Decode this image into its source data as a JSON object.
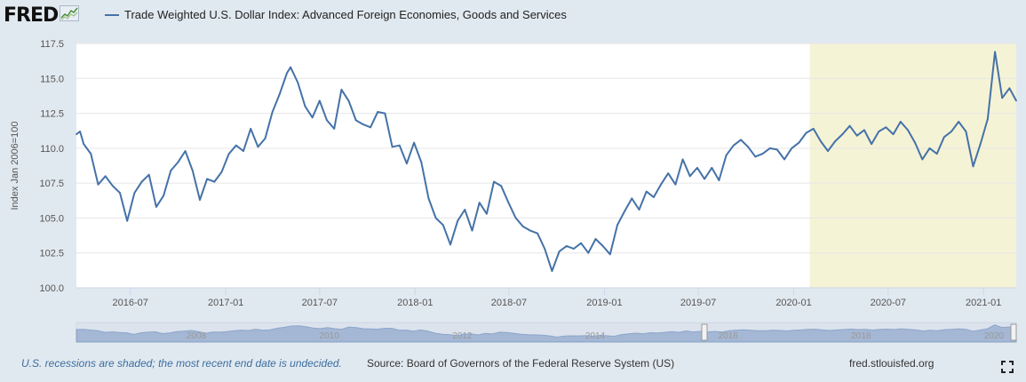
{
  "logo": {
    "text": "FRED"
  },
  "legend": {
    "label": "Trade Weighted U.S. Dollar Index: Advanced Foreign Economies, Goods and Services",
    "color": "#4572a7"
  },
  "footer": {
    "recession_note": "U.S. recessions are shaded; the most recent end date is undecided.",
    "source": "Source: Board of Governors of the Federal Reserve System (US)",
    "url": "fred.stlouisfed.org"
  },
  "navigator": {
    "year_labels": [
      "2008",
      "2010",
      "2012",
      "2014",
      "2016",
      "2018",
      "2020"
    ]
  },
  "colors": {
    "line": "#4572a7",
    "recession": "#f5f3d6",
    "background": "#e1e9f0",
    "plot_bg": "#ffffff",
    "grid": "#e6e6e6"
  },
  "icons": {
    "fullscreen": "fullscreen-icon",
    "logo_graph": "chart-graph-icon"
  },
  "chart_data": {
    "type": "line",
    "title": "",
    "xlabel": "",
    "ylabel": "Index Jan 2006=100",
    "ylim": [
      100.0,
      117.5
    ],
    "xlim": [
      "2016-03-19",
      "2021-03-05"
    ],
    "yticks": [
      "100.0",
      "102.5",
      "105.0",
      "107.5",
      "110.0",
      "112.5",
      "115.0",
      "117.5"
    ],
    "xticks": [
      {
        "date": "2016-07-01",
        "label": "2016-07"
      },
      {
        "date": "2017-01-01",
        "label": "2017-01"
      },
      {
        "date": "2017-07-01",
        "label": "2017-07"
      },
      {
        "date": "2018-01-01",
        "label": "2018-01"
      },
      {
        "date": "2018-07-01",
        "label": "2018-07"
      },
      {
        "date": "2019-01-01",
        "label": "2019-01"
      },
      {
        "date": "2019-07-01",
        "label": "2019-07"
      },
      {
        "date": "2020-01-01",
        "label": "2020-01"
      },
      {
        "date": "2020-07-01",
        "label": "2020-07"
      },
      {
        "date": "2021-01-01",
        "label": "2021-01"
      }
    ],
    "recession": {
      "start": "2020-02-01",
      "end": "2021-03-05"
    },
    "grid": true,
    "series": [
      {
        "name": "Trade Weighted U.S. Dollar Index: Advanced Foreign Economies, Goods and Services",
        "points": [
          [
            "2016-03-19",
            111.0
          ],
          [
            "2016-03-26",
            111.2
          ],
          [
            "2016-04-02",
            110.3
          ],
          [
            "2016-04-16",
            109.6
          ],
          [
            "2016-04-30",
            107.4
          ],
          [
            "2016-05-14",
            108.0
          ],
          [
            "2016-05-28",
            107.3
          ],
          [
            "2016-06-11",
            106.8
          ],
          [
            "2016-06-25",
            104.8
          ],
          [
            "2016-07-09",
            106.8
          ],
          [
            "2016-07-23",
            107.6
          ],
          [
            "2016-08-06",
            108.1
          ],
          [
            "2016-08-20",
            105.8
          ],
          [
            "2016-09-03",
            106.6
          ],
          [
            "2016-09-17",
            108.4
          ],
          [
            "2016-10-01",
            109.0
          ],
          [
            "2016-10-15",
            109.8
          ],
          [
            "2016-10-29",
            108.4
          ],
          [
            "2016-11-12",
            106.3
          ],
          [
            "2016-11-26",
            107.8
          ],
          [
            "2016-12-10",
            107.6
          ],
          [
            "2016-12-24",
            108.3
          ],
          [
            "2017-01-07",
            109.6
          ],
          [
            "2017-01-21",
            110.2
          ],
          [
            "2017-02-04",
            109.8
          ],
          [
            "2017-02-18",
            111.4
          ],
          [
            "2017-03-04",
            110.1
          ],
          [
            "2017-03-18",
            110.7
          ],
          [
            "2017-04-01",
            112.6
          ],
          [
            "2017-04-15",
            113.9
          ],
          [
            "2017-04-29",
            115.4
          ],
          [
            "2017-05-06",
            115.8
          ],
          [
            "2017-05-20",
            114.7
          ],
          [
            "2017-06-03",
            113.0
          ],
          [
            "2017-06-17",
            112.2
          ],
          [
            "2017-07-01",
            113.4
          ],
          [
            "2017-07-15",
            112.0
          ],
          [
            "2017-07-29",
            111.4
          ],
          [
            "2017-08-12",
            114.2
          ],
          [
            "2017-08-26",
            113.4
          ],
          [
            "2017-09-09",
            112.0
          ],
          [
            "2017-09-23",
            111.7
          ],
          [
            "2017-10-07",
            111.5
          ],
          [
            "2017-10-21",
            112.6
          ],
          [
            "2017-11-04",
            112.5
          ],
          [
            "2017-11-18",
            110.1
          ],
          [
            "2017-12-02",
            110.2
          ],
          [
            "2017-12-16",
            108.9
          ],
          [
            "2017-12-30",
            110.4
          ],
          [
            "2018-01-13",
            109.0
          ],
          [
            "2018-01-27",
            106.4
          ],
          [
            "2018-02-10",
            105.0
          ],
          [
            "2018-02-24",
            104.5
          ],
          [
            "2018-03-10",
            103.1
          ],
          [
            "2018-03-24",
            104.8
          ],
          [
            "2018-04-07",
            105.6
          ],
          [
            "2018-04-21",
            104.1
          ],
          [
            "2018-05-05",
            106.1
          ],
          [
            "2018-05-19",
            105.3
          ],
          [
            "2018-06-02",
            107.6
          ],
          [
            "2018-06-16",
            107.3
          ],
          [
            "2018-06-30",
            106.1
          ],
          [
            "2018-07-14",
            105.0
          ],
          [
            "2018-07-28",
            104.4
          ],
          [
            "2018-08-11",
            104.1
          ],
          [
            "2018-08-25",
            103.9
          ],
          [
            "2018-09-08",
            102.8
          ],
          [
            "2018-09-22",
            101.2
          ],
          [
            "2018-10-06",
            102.6
          ],
          [
            "2018-10-20",
            103.0
          ],
          [
            "2018-11-03",
            102.8
          ],
          [
            "2018-11-17",
            103.2
          ],
          [
            "2018-12-01",
            102.5
          ],
          [
            "2018-12-15",
            103.5
          ],
          [
            "2018-12-29",
            103.0
          ],
          [
            "2019-01-12",
            102.4
          ],
          [
            "2019-01-26",
            104.5
          ],
          [
            "2019-02-09",
            105.5
          ],
          [
            "2019-02-23",
            106.4
          ],
          [
            "2019-03-09",
            105.6
          ],
          [
            "2019-03-23",
            106.9
          ],
          [
            "2019-04-06",
            106.5
          ],
          [
            "2019-04-20",
            107.4
          ],
          [
            "2019-05-04",
            108.2
          ],
          [
            "2019-05-18",
            107.4
          ],
          [
            "2019-06-01",
            109.2
          ],
          [
            "2019-06-15",
            108.0
          ],
          [
            "2019-06-29",
            108.6
          ],
          [
            "2019-07-13",
            107.8
          ],
          [
            "2019-07-27",
            108.6
          ],
          [
            "2019-08-10",
            107.7
          ],
          [
            "2019-08-24",
            109.5
          ],
          [
            "2019-09-07",
            110.2
          ],
          [
            "2019-09-21",
            110.6
          ],
          [
            "2019-10-05",
            110.1
          ],
          [
            "2019-10-19",
            109.4
          ],
          [
            "2019-11-02",
            109.6
          ],
          [
            "2019-11-16",
            110.0
          ],
          [
            "2019-11-30",
            109.9
          ],
          [
            "2019-12-14",
            109.2
          ],
          [
            "2019-12-28",
            110.0
          ],
          [
            "2020-01-11",
            110.4
          ],
          [
            "2020-01-25",
            111.1
          ],
          [
            "2020-02-08",
            111.4
          ],
          [
            "2020-02-22",
            110.5
          ],
          [
            "2020-03-07",
            109.8
          ],
          [
            "2020-03-21",
            110.5
          ],
          [
            "2020-04-04",
            111.0
          ],
          [
            "2020-04-18",
            111.6
          ],
          [
            "2020-05-02",
            110.9
          ],
          [
            "2020-05-16",
            111.3
          ],
          [
            "2020-05-30",
            110.3
          ],
          [
            "2020-06-13",
            111.2
          ],
          [
            "2020-06-27",
            111.5
          ],
          [
            "2020-07-11",
            111.0
          ],
          [
            "2020-07-25",
            111.9
          ],
          [
            "2020-08-08",
            111.3
          ],
          [
            "2020-08-22",
            110.4
          ],
          [
            "2020-09-05",
            109.2
          ],
          [
            "2020-09-19",
            110.0
          ],
          [
            "2020-10-03",
            109.6
          ],
          [
            "2020-10-17",
            110.8
          ],
          [
            "2020-10-31",
            111.2
          ],
          [
            "2020-11-14",
            111.9
          ],
          [
            "2020-11-28",
            111.2
          ],
          [
            "2020-12-12",
            108.7
          ],
          [
            "2020-12-26",
            110.3
          ],
          [
            "2021-01-09",
            112.1
          ],
          [
            "2021-01-23",
            116.9
          ],
          [
            "2021-02-06",
            113.6
          ],
          [
            "2021-02-20",
            114.3
          ],
          [
            "2021-03-05",
            113.4
          ]
        ]
      }
    ]
  }
}
